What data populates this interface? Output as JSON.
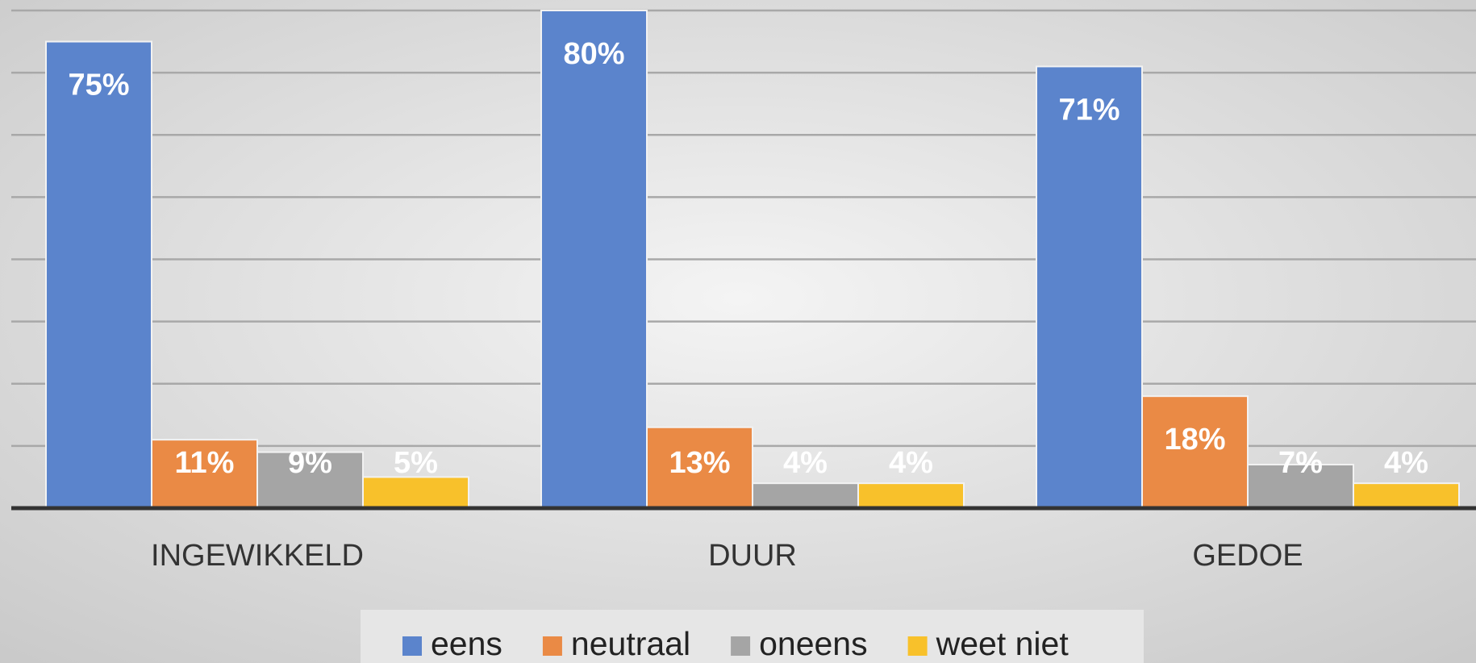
{
  "chart_data": {
    "type": "bar",
    "categories": [
      "INGEWIKKELD",
      "DUUR",
      "GEDOE"
    ],
    "series": [
      {
        "name": "eens",
        "color": "#5b84cc",
        "values": [
          75,
          80,
          71
        ],
        "value_labels": [
          "75%",
          "80%",
          "71%"
        ]
      },
      {
        "name": "neutraal",
        "color": "#ea8a45",
        "values": [
          11,
          13,
          18
        ],
        "value_labels": [
          "11%",
          "13%",
          "18%"
        ]
      },
      {
        "name": "oneens",
        "color": "#a5a5a5",
        "values": [
          9,
          4,
          7
        ],
        "value_labels": [
          "9%",
          "4%",
          "7%"
        ]
      },
      {
        "name": "weet niet",
        "color": "#f8c12b",
        "values": [
          5,
          4,
          4
        ],
        "value_labels": [
          "5%",
          "4%",
          "4%"
        ]
      }
    ],
    "ylim": [
      0,
      80
    ],
    "yticks": [
      0,
      10,
      20,
      30,
      40,
      50,
      60,
      70,
      80
    ],
    "grid": true,
    "legend": "bottom"
  }
}
